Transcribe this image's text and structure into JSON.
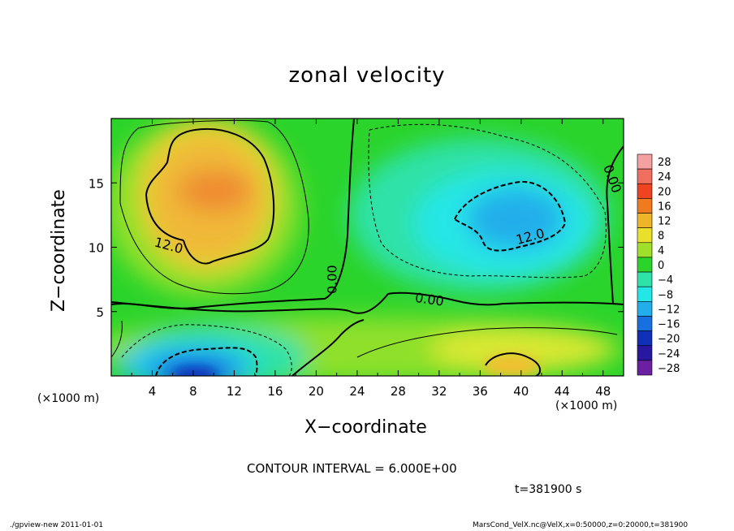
{
  "title": "zonal velocity",
  "xlabel": "X−coordinate",
  "ylabel": "Z−coordinate",
  "x_unit_left": "(×1000 m)",
  "x_unit_right": "(×1000 m)",
  "contour_interval": "CONTOUR INTERVAL = 6.000E+00",
  "time_label": "t=381900 s",
  "footer_left": "./gpview-new   2011-01-01",
  "footer_right": "MarsCond_VelX.nc@VelX,x=0:50000,z=0:20000,t=381900",
  "chart_data": {
    "type": "heatmap",
    "title": "zonal velocity",
    "xlabel": "X−coordinate",
    "ylabel": "Z−coordinate",
    "xlim": [
      0,
      50
    ],
    "ylim": [
      0,
      20
    ],
    "xticks": [
      4,
      8,
      12,
      16,
      20,
      24,
      28,
      32,
      36,
      40,
      44,
      48
    ],
    "yticks": [
      5,
      10,
      15
    ],
    "colorbar_levels": [
      28,
      24,
      20,
      16,
      12,
      8,
      4,
      0,
      -4,
      -8,
      -12,
      -16,
      -20,
      -24,
      -28
    ],
    "contour_labels": [
      {
        "text": "12.0",
        "x": 5.5,
        "y": 9.8
      },
      {
        "text": "12.0",
        "x": 41.0,
        "y": 10.5
      },
      {
        "text": "0.00",
        "x": 22.0,
        "y": 7.5
      },
      {
        "text": "0.00",
        "x": 31.0,
        "y": 5.6
      },
      {
        "text": "0.00",
        "x": 48.5,
        "y": 15.2
      }
    ],
    "features": [
      {
        "name": "positive-max-upper-left",
        "x": 9,
        "z": 14,
        "value": 15
      },
      {
        "name": "negative-min-upper-right",
        "x": 40,
        "z": 12,
        "value": -13
      },
      {
        "name": "negative-min-lower-left",
        "x": 8,
        "z": 0.5,
        "value": -22
      },
      {
        "name": "positive-lower-right",
        "x": 40,
        "z": 1.5,
        "value": 11
      }
    ]
  }
}
